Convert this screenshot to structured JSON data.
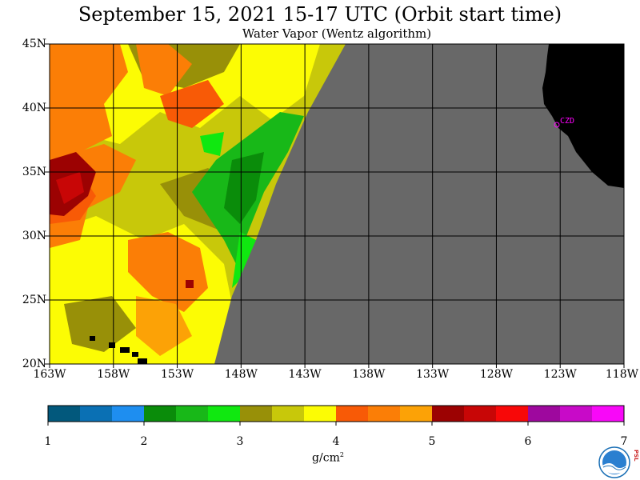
{
  "title": "September 15, 2021  15-17 UTC  (Orbit start time)",
  "subtitle": "Water Vapor (Wentz algorithm)",
  "lat_labels": [
    "45N",
    "40N",
    "35N",
    "30N",
    "25N",
    "20N"
  ],
  "lon_labels": [
    "163W",
    "158W",
    "153W",
    "148W",
    "143W",
    "138W",
    "133W",
    "128W",
    "123W",
    "118W"
  ],
  "station_label": "CZD",
  "colorbar": {
    "tick_labels": [
      "1",
      "2",
      "3",
      "4",
      "5",
      "6",
      "7"
    ],
    "unit": "g/cm",
    "unit_exp": "2",
    "colors": [
      "#02587c",
      "#0a70b4",
      "#1e8ef0",
      "#0a8c0a",
      "#18b818",
      "#10e810",
      "#989008",
      "#c8c80a",
      "#fcfc04",
      "#f85a06",
      "#fb7e06",
      "#fca206",
      "#9c0202",
      "#c80606",
      "#f80808",
      "#9e089e",
      "#c80ac8",
      "#f808f8"
    ]
  },
  "map_colors": {
    "land": "#000000",
    "no_data": "#686868",
    "station_marker": "#ff00ff",
    "psl_badge": "#cc2a2a"
  },
  "logo": {
    "text": "NOAA",
    "side_text": "PSL"
  }
}
